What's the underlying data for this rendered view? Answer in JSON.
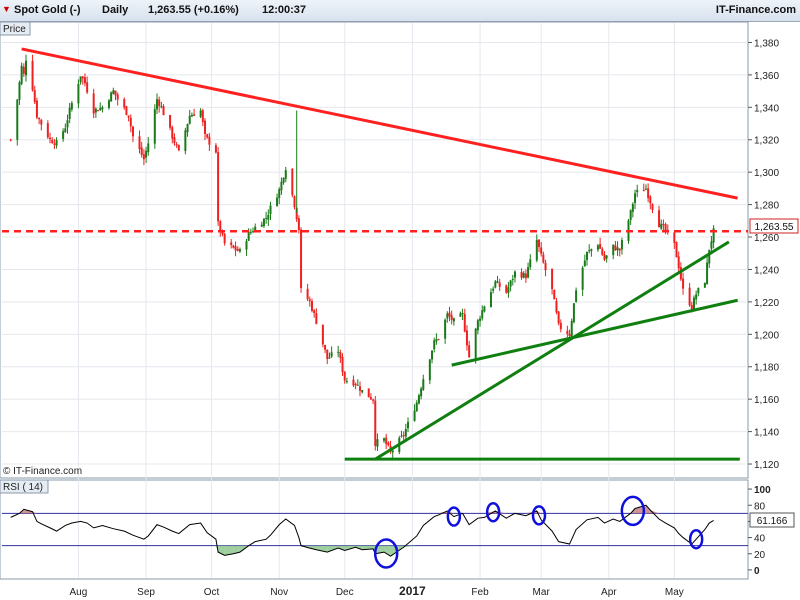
{
  "header": {
    "symbol_icon": "down-arrow-icon",
    "symbol": "Spot Gold (-)",
    "period": "Daily",
    "quote": "1,263.55 (+0.16%)",
    "time": "12:00:37",
    "brand": "IT-Finance.com"
  },
  "price_panel": {
    "title": "Price",
    "watermark": "© IT-Finance.com",
    "current_label": "1,263.55"
  },
  "rsi_panel": {
    "title": "RSI ( 14)",
    "current_label": "61.166"
  },
  "colors": {
    "resistance": "#ff2020",
    "support": "#0f7f0f",
    "current_price": "#ff2020",
    "up_candle": "#1a7a1a",
    "down_candle": "#ee2020",
    "rsi_line": "#000000",
    "rsi_bands": "#3030a0",
    "highlight_circles": "#1010dd",
    "overbought_fill": "#c07070",
    "oversold_fill": "#7fbf7f"
  },
  "chart_data": [
    {
      "type": "candlestick",
      "title": "Spot Gold (-)",
      "ylabel": "Price",
      "ylim": [
        1112,
        1392
      ],
      "y_ticks": [
        1120,
        1140,
        1160,
        1180,
        1200,
        1220,
        1240,
        1260,
        1280,
        1300,
        1320,
        1340,
        1360,
        1380
      ],
      "y_tick_labels": [
        "1,120",
        "1,140",
        "1,160",
        "1,180",
        "1,200",
        "1,220",
        "1,240",
        "1,260",
        "1,280",
        "1,300",
        "1,320",
        "1,340",
        "1,360",
        "1,380"
      ],
      "x_tick_labels": [
        "Aug",
        "Sep",
        "Oct",
        "Nov",
        "Dec",
        "2017",
        "Feb",
        "Mar",
        "Apr",
        "May"
      ],
      "x_tick_dates": [
        "2016-08-01",
        "2016-09-01",
        "2016-10-01",
        "2016-11-01",
        "2016-12-01",
        "2017-01-01",
        "2017-02-01",
        "2017-03-01",
        "2017-04-01",
        "2017-05-01"
      ],
      "date_range": [
        "2016-07-01",
        "2017-05-19"
      ],
      "closing_path": [
        [
          "2016-07-01",
          1320
        ],
        [
          "2016-07-04",
          1345
        ],
        [
          "2016-07-06",
          1365
        ],
        [
          "2016-07-07",
          1360
        ],
        [
          "2016-07-08",
          1370
        ],
        [
          "2016-07-11",
          1352
        ],
        [
          "2016-07-13",
          1335
        ],
        [
          "2016-07-15",
          1330
        ],
        [
          "2016-07-19",
          1320
        ],
        [
          "2016-07-22",
          1318
        ],
        [
          "2016-07-26",
          1328
        ],
        [
          "2016-07-28",
          1338
        ],
        [
          "2016-08-02",
          1360
        ],
        [
          "2016-08-04",
          1355
        ],
        [
          "2016-08-08",
          1338
        ],
        [
          "2016-08-12",
          1340
        ],
        [
          "2016-08-17",
          1350
        ],
        [
          "2016-08-19",
          1345
        ],
        [
          "2016-08-24",
          1335
        ],
        [
          "2016-08-26",
          1322
        ],
        [
          "2016-08-31",
          1308
        ],
        [
          "2016-09-02",
          1318
        ],
        [
          "2016-09-06",
          1345
        ],
        [
          "2016-09-08",
          1340
        ],
        [
          "2016-09-13",
          1322
        ],
        [
          "2016-09-16",
          1312
        ],
        [
          "2016-09-21",
          1335
        ],
        [
          "2016-09-26",
          1338
        ],
        [
          "2016-09-28",
          1322
        ],
        [
          "2016-10-03",
          1313
        ],
        [
          "2016-10-04",
          1268
        ],
        [
          "2016-10-07",
          1256
        ],
        [
          "2016-10-11",
          1253
        ],
        [
          "2016-10-14",
          1251
        ],
        [
          "2016-10-18",
          1262
        ],
        [
          "2016-10-21",
          1266
        ],
        [
          "2016-10-26",
          1272
        ],
        [
          "2016-10-28",
          1278
        ],
        [
          "2016-11-01",
          1289
        ],
        [
          "2016-11-04",
          1303
        ],
        [
          "2016-11-08",
          1280
        ],
        [
          "2016-11-10",
          1265
        ],
        [
          "2016-11-11",
          1227
        ],
        [
          "2016-11-15",
          1220
        ],
        [
          "2016-11-18",
          1208
        ],
        [
          "2016-11-23",
          1185
        ],
        [
          "2016-11-28",
          1190
        ],
        [
          "2016-12-01",
          1172
        ],
        [
          "2016-12-06",
          1170
        ],
        [
          "2016-12-09",
          1165
        ],
        [
          "2016-12-14",
          1160
        ],
        [
          "2016-12-15",
          1133
        ],
        [
          "2016-12-19",
          1135
        ],
        [
          "2016-12-22",
          1127
        ],
        [
          "2016-12-28",
          1138
        ],
        [
          "2017-01-03",
          1158
        ],
        [
          "2017-01-06",
          1173
        ],
        [
          "2017-01-11",
          1195
        ],
        [
          "2017-01-13",
          1198
        ],
        [
          "2017-01-17",
          1212
        ],
        [
          "2017-01-20",
          1208
        ],
        [
          "2017-01-24",
          1212
        ],
        [
          "2017-01-27",
          1186
        ],
        [
          "2017-01-31",
          1208
        ],
        [
          "2017-02-03",
          1218
        ],
        [
          "2017-02-08",
          1232
        ],
        [
          "2017-02-13",
          1226
        ],
        [
          "2017-02-17",
          1238
        ],
        [
          "2017-02-22",
          1236
        ],
        [
          "2017-02-27",
          1258
        ],
        [
          "2017-03-01",
          1248
        ],
        [
          "2017-03-06",
          1227
        ],
        [
          "2017-03-09",
          1205
        ],
        [
          "2017-03-14",
          1200
        ],
        [
          "2017-03-17",
          1228
        ],
        [
          "2017-03-22",
          1250
        ],
        [
          "2017-03-27",
          1256
        ],
        [
          "2017-03-30",
          1246
        ],
        [
          "2017-04-03",
          1254
        ],
        [
          "2017-04-06",
          1252
        ],
        [
          "2017-04-11",
          1275
        ],
        [
          "2017-04-13",
          1287
        ],
        [
          "2017-04-18",
          1290
        ],
        [
          "2017-04-20",
          1282
        ],
        [
          "2017-04-24",
          1268
        ],
        [
          "2017-04-27",
          1264
        ],
        [
          "2017-05-01",
          1255
        ],
        [
          "2017-05-03",
          1242
        ],
        [
          "2017-05-05",
          1227
        ],
        [
          "2017-05-09",
          1217
        ],
        [
          "2017-05-11",
          1225
        ],
        [
          "2017-05-15",
          1233
        ],
        [
          "2017-05-17",
          1253
        ],
        [
          "2017-05-19",
          1263.55
        ]
      ],
      "trendlines": [
        {
          "role": "resistance",
          "from": [
            "2016-07-06",
            1376
          ],
          "to": [
            "2017-05-30",
            1284
          ]
        },
        {
          "role": "support",
          "from": [
            "2016-12-15",
            1123
          ],
          "to": [
            "2017-05-26",
            1257
          ]
        },
        {
          "role": "support",
          "from": [
            "2017-01-19",
            1181
          ],
          "to": [
            "2017-05-30",
            1221
          ]
        },
        {
          "role": "support",
          "from": [
            "2016-12-01",
            1123
          ],
          "to": [
            "2017-05-31",
            1123
          ],
          "style": "horizontal"
        },
        {
          "role": "current_price",
          "value": 1263.55,
          "style": "dashed"
        }
      ]
    },
    {
      "type": "line",
      "title": "RSI ( 14)",
      "ylim": [
        -10,
        110
      ],
      "y_ticks": [
        0,
        20,
        40,
        60,
        80,
        100
      ],
      "bands": [
        30,
        70
      ],
      "current_value": 61.166,
      "series": [
        [
          "2016-07-01",
          65
        ],
        [
          "2016-07-05",
          70
        ],
        [
          "2016-07-07",
          75
        ],
        [
          "2016-07-11",
          72
        ],
        [
          "2016-07-13",
          60
        ],
        [
          "2016-07-15",
          57
        ],
        [
          "2016-07-19",
          52
        ],
        [
          "2016-07-22",
          48
        ],
        [
          "2016-07-26",
          55
        ],
        [
          "2016-07-29",
          58
        ],
        [
          "2016-08-02",
          60
        ],
        [
          "2016-08-05",
          58
        ],
        [
          "2016-08-08",
          52
        ],
        [
          "2016-08-12",
          55
        ],
        [
          "2016-08-17",
          51
        ],
        [
          "2016-08-22",
          48
        ],
        [
          "2016-08-26",
          43
        ],
        [
          "2016-08-31",
          38
        ],
        [
          "2016-09-02",
          42
        ],
        [
          "2016-09-06",
          56
        ],
        [
          "2016-09-09",
          53
        ],
        [
          "2016-09-13",
          48
        ],
        [
          "2016-09-16",
          45
        ],
        [
          "2016-09-21",
          56
        ],
        [
          "2016-09-26",
          58
        ],
        [
          "2016-09-29",
          46
        ],
        [
          "2016-10-03",
          38
        ],
        [
          "2016-10-04",
          22
        ],
        [
          "2016-10-07",
          18
        ],
        [
          "2016-10-11",
          20
        ],
        [
          "2016-10-14",
          22
        ],
        [
          "2016-10-18",
          30
        ],
        [
          "2016-10-21",
          35
        ],
        [
          "2016-10-26",
          38
        ],
        [
          "2016-10-28",
          43
        ],
        [
          "2016-11-01",
          56
        ],
        [
          "2016-11-04",
          63
        ],
        [
          "2016-11-08",
          55
        ],
        [
          "2016-11-10",
          40
        ],
        [
          "2016-11-11",
          30
        ],
        [
          "2016-11-15",
          27
        ],
        [
          "2016-11-18",
          25
        ],
        [
          "2016-11-23",
          22
        ],
        [
          "2016-11-28",
          27
        ],
        [
          "2016-12-01",
          24
        ],
        [
          "2016-12-06",
          28
        ],
        [
          "2016-12-09",
          25
        ],
        [
          "2016-12-14",
          26
        ],
        [
          "2016-12-15",
          20
        ],
        [
          "2016-12-19",
          22
        ],
        [
          "2016-12-22",
          17
        ],
        [
          "2016-12-28",
          28
        ],
        [
          "2017-01-03",
          42
        ],
        [
          "2017-01-06",
          55
        ],
        [
          "2017-01-11",
          66
        ],
        [
          "2017-01-13",
          68
        ],
        [
          "2017-01-17",
          73
        ],
        [
          "2017-01-20",
          66
        ],
        [
          "2017-01-24",
          70
        ],
        [
          "2017-01-27",
          56
        ],
        [
          "2017-01-31",
          64
        ],
        [
          "2017-02-03",
          65
        ],
        [
          "2017-02-08",
          73
        ],
        [
          "2017-02-13",
          64
        ],
        [
          "2017-02-17",
          70
        ],
        [
          "2017-02-22",
          67
        ],
        [
          "2017-02-27",
          73
        ],
        [
          "2017-03-01",
          62
        ],
        [
          "2017-03-06",
          48
        ],
        [
          "2017-03-09",
          35
        ],
        [
          "2017-03-14",
          32
        ],
        [
          "2017-03-17",
          50
        ],
        [
          "2017-03-22",
          62
        ],
        [
          "2017-03-27",
          65
        ],
        [
          "2017-03-30",
          58
        ],
        [
          "2017-04-03",
          63
        ],
        [
          "2017-04-06",
          60
        ],
        [
          "2017-04-11",
          70
        ],
        [
          "2017-04-13",
          76
        ],
        [
          "2017-04-18",
          80
        ],
        [
          "2017-04-20",
          74
        ],
        [
          "2017-04-24",
          63
        ],
        [
          "2017-04-27",
          58
        ],
        [
          "2017-05-01",
          52
        ],
        [
          "2017-05-03",
          45
        ],
        [
          "2017-05-05",
          40
        ],
        [
          "2017-05-09",
          32
        ],
        [
          "2017-05-11",
          38
        ],
        [
          "2017-05-15",
          50
        ],
        [
          "2017-05-17",
          58
        ],
        [
          "2017-05-19",
          61.166
        ]
      ],
      "highlighted_dates": [
        "2016-12-20",
        "2017-01-20",
        "2017-02-07",
        "2017-02-28",
        "2017-04-12",
        "2017-05-11"
      ]
    }
  ]
}
